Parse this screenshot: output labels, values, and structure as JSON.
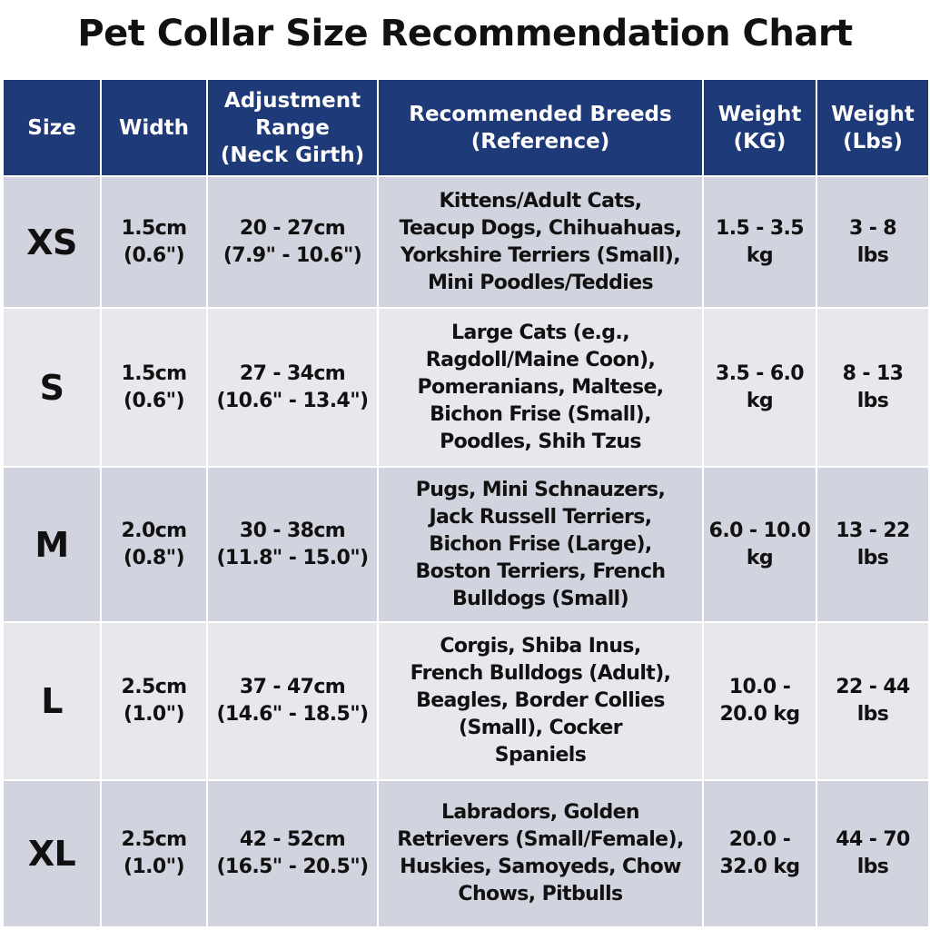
{
  "title": "Pet Collar Size Recommendation Chart",
  "table": {
    "headers": [
      [
        "Size"
      ],
      [
        "Width"
      ],
      [
        "Adjustment",
        "Range",
        "(Neck Girth)"
      ],
      [
        "Recommended Breeds",
        "(Reference)"
      ],
      [
        "Weight",
        "(KG)"
      ],
      [
        "Weight",
        "(Lbs)"
      ]
    ],
    "rows": [
      [
        [
          "XS"
        ],
        [
          "1.5cm",
          "(0.6\")"
        ],
        [
          "20 - 27cm",
          "(7.9\" - 10.6\")"
        ],
        [
          "Kittens/Adult Cats,",
          "Teacup Dogs, Chihuahuas,",
          "Yorkshire Terriers (Small),",
          "Mini Poodles/Teddies"
        ],
        [
          "1.5 - 3.5",
          "kg"
        ],
        [
          "3 - 8",
          "lbs"
        ]
      ],
      [
        [
          "S"
        ],
        [
          "1.5cm",
          "(0.6\")"
        ],
        [
          "27 - 34cm",
          "(10.6\" - 13.4\")"
        ],
        [
          "Large Cats (e.g.,",
          "Ragdoll/Maine Coon),",
          "Pomeranians, Maltese,",
          "Bichon Frise (Small),",
          "Poodles, Shih Tzus"
        ],
        [
          "3.5 - 6.0",
          "kg"
        ],
        [
          "8 - 13",
          "lbs"
        ]
      ],
      [
        [
          "M"
        ],
        [
          "2.0cm",
          "(0.8\")"
        ],
        [
          "30 - 38cm",
          "(11.8\" - 15.0\")"
        ],
        [
          "Pugs, Mini Schnauzers,",
          "Jack Russell Terriers,",
          "Bichon Frise (Large),",
          "Boston Terriers, French",
          "Bulldogs (Small)"
        ],
        [
          "6.0 - 10.0",
          "kg"
        ],
        [
          "13 - 22",
          "lbs"
        ]
      ],
      [
        [
          "L"
        ],
        [
          "2.5cm",
          "(1.0\")"
        ],
        [
          "37 - 47cm",
          "(14.6\" - 18.5\")"
        ],
        [
          "Corgis, Shiba Inus,",
          "French Bulldogs (Adult),",
          "Beagles, Border Collies",
          "(Small), Cocker",
          "Spaniels"
        ],
        [
          "10.0 -",
          "20.0 kg"
        ],
        [
          "22 - 44",
          "lbs"
        ]
      ],
      [
        [
          "XL"
        ],
        [
          "2.5cm",
          "(1.0\")"
        ],
        [
          "42 - 52cm",
          "(16.5\" - 20.5\")"
        ],
        [
          "Labradors, Golden",
          "Retrievers (Small/Female),",
          "Huskies, Samoyeds, Chow",
          "Chows, Pitbulls"
        ],
        [
          "20.0 -",
          "32.0 kg"
        ],
        [
          "44 - 70",
          "lbs"
        ]
      ]
    ]
  }
}
